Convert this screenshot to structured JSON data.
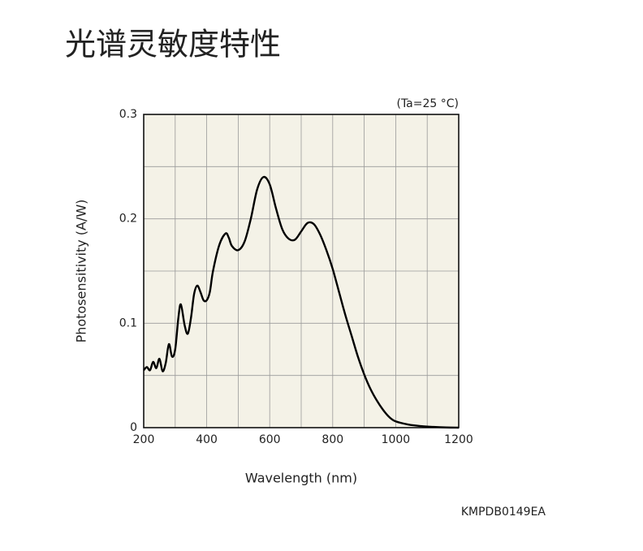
{
  "chart_data": {
    "type": "line",
    "title": "光谱灵敏度特性",
    "annotation": "(Ta=25 °C)",
    "code": "KMPDB0149EA",
    "xlabel": "Wavelength (nm)",
    "ylabel": "Photosensitivity (A/W)",
    "xlim": [
      200,
      1200
    ],
    "ylim": [
      0,
      0.3
    ],
    "xticks": [
      200,
      400,
      600,
      800,
      1000,
      1200
    ],
    "yticks": [
      0,
      0.1,
      0.2,
      0.3
    ],
    "minor_xticks": [
      300,
      500,
      700,
      900,
      1100
    ],
    "minor_yticks": [
      0.05,
      0.15,
      0.25
    ],
    "grid": true,
    "x": [
      200,
      210,
      220,
      230,
      240,
      250,
      260,
      270,
      280,
      290,
      300,
      310,
      318,
      330,
      340,
      350,
      360,
      370,
      380,
      390,
      400,
      410,
      420,
      440,
      460,
      470,
      480,
      500,
      520,
      540,
      560,
      580,
      600,
      620,
      640,
      660,
      680,
      700,
      720,
      740,
      760,
      780,
      800,
      820,
      840,
      860,
      880,
      900,
      920,
      940,
      960,
      980,
      1000,
      1040,
      1080,
      1120,
      1160,
      1200
    ],
    "series": [
      {
        "color": "#000000",
        "values": [
          0.055,
          0.058,
          0.055,
          0.063,
          0.057,
          0.066,
          0.054,
          0.062,
          0.08,
          0.068,
          0.075,
          0.105,
          0.118,
          0.098,
          0.09,
          0.105,
          0.128,
          0.136,
          0.13,
          0.122,
          0.122,
          0.13,
          0.15,
          0.175,
          0.186,
          0.182,
          0.174,
          0.17,
          0.178,
          0.2,
          0.228,
          0.24,
          0.233,
          0.21,
          0.19,
          0.181,
          0.18,
          0.188,
          0.196,
          0.195,
          0.185,
          0.17,
          0.152,
          0.13,
          0.108,
          0.088,
          0.068,
          0.051,
          0.037,
          0.026,
          0.017,
          0.01,
          0.006,
          0.003,
          0.0015,
          0.0007,
          0.0002,
          0
        ]
      }
    ]
  }
}
